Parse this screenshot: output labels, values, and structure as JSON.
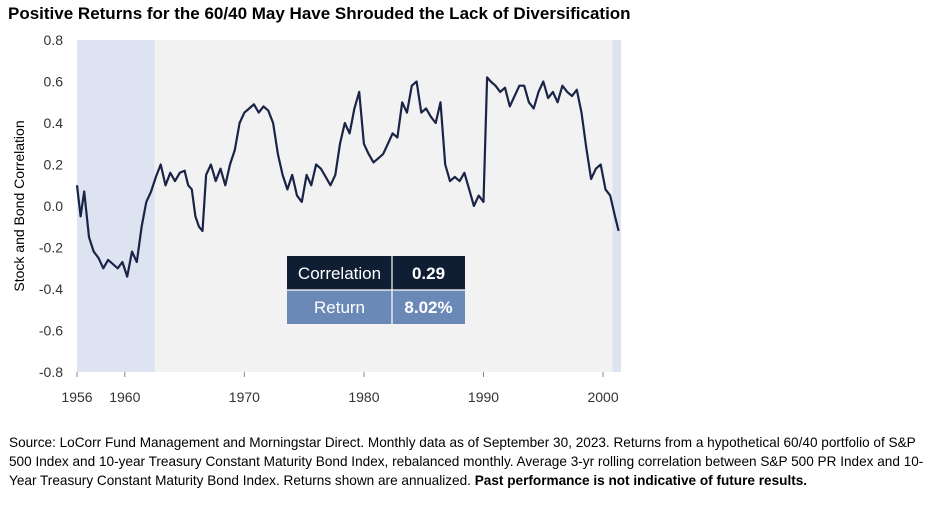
{
  "chart_data": {
    "type": "line",
    "title": "Positive Returns for the 60/40 May Have Shrouded the Lack of Diversification",
    "xlabel": "",
    "ylabel": "Stock and Bond Correlation",
    "xlim": [
      1956,
      2001.5
    ],
    "ylim": [
      -0.8,
      0.8
    ],
    "y_ticks": [
      "0.8",
      "0.6",
      "0.4",
      "0.2",
      "0.0",
      "-0.2",
      "-0.4",
      "-0.6",
      "-0.8"
    ],
    "y_tick_values": [
      0.8,
      0.6,
      0.4,
      0.2,
      0.0,
      -0.2,
      -0.4,
      -0.6,
      -0.8
    ],
    "x_ticks": [
      "1956",
      "1960",
      "1970",
      "1980",
      "1990",
      "2000"
    ],
    "x_tick_values": [
      1956,
      1960,
      1970,
      1980,
      1990,
      2000
    ],
    "shaded_periods": [
      [
        1956,
        1962.5
      ],
      [
        2000.8,
        2001.5
      ]
    ],
    "grid": false,
    "series": [
      {
        "color": "#1a2447",
        "x": [
          1956.0,
          1956.3,
          1956.6,
          1957.0,
          1957.4,
          1957.8,
          1958.2,
          1958.6,
          1959.0,
          1959.4,
          1959.8,
          1960.2,
          1960.6,
          1961.0,
          1961.4,
          1961.8,
          1962.2,
          1962.6,
          1963.0,
          1963.4,
          1963.8,
          1964.2,
          1964.6,
          1965.0,
          1965.3,
          1965.6,
          1965.9,
          1966.2,
          1966.5,
          1966.8,
          1967.2,
          1967.6,
          1968.0,
          1968.4,
          1968.8,
          1969.2,
          1969.6,
          1970.0,
          1970.4,
          1970.8,
          1971.2,
          1971.6,
          1972.0,
          1972.4,
          1972.8,
          1973.2,
          1973.6,
          1974.0,
          1974.4,
          1974.8,
          1975.2,
          1975.6,
          1976.0,
          1976.4,
          1976.8,
          1977.2,
          1977.6,
          1978.0,
          1978.4,
          1978.8,
          1979.2,
          1979.6,
          1980.0,
          1980.4,
          1980.8,
          1981.2,
          1981.6,
          1982.0,
          1982.4,
          1982.8,
          1983.2,
          1983.6,
          1984.0,
          1984.4,
          1984.8,
          1985.2,
          1985.6,
          1986.0,
          1986.4,
          1986.8,
          1987.2,
          1987.6,
          1988.0,
          1988.4,
          1988.8,
          1989.2,
          1989.6,
          1990.0,
          1990.3,
          1990.6,
          1991.0,
          1991.4,
          1991.8,
          1992.2,
          1992.6,
          1993.0,
          1993.4,
          1993.8,
          1994.2,
          1994.6,
          1995.0,
          1995.4,
          1995.8,
          1996.2,
          1996.6,
          1997.0,
          1997.4,
          1997.8,
          1998.2,
          1998.6,
          1999.0,
          1999.4,
          1999.8,
          2000.2,
          2000.6,
          2001.0,
          2001.3
        ],
        "values": [
          0.1,
          -0.05,
          0.07,
          -0.15,
          -0.22,
          -0.25,
          -0.3,
          -0.26,
          -0.28,
          -0.3,
          -0.27,
          -0.34,
          -0.22,
          -0.27,
          -0.1,
          0.02,
          0.07,
          0.14,
          0.2,
          0.1,
          0.16,
          0.12,
          0.16,
          0.17,
          0.1,
          0.08,
          -0.05,
          -0.1,
          -0.12,
          0.15,
          0.2,
          0.12,
          0.18,
          0.1,
          0.2,
          0.27,
          0.4,
          0.45,
          0.47,
          0.49,
          0.45,
          0.48,
          0.46,
          0.4,
          0.25,
          0.15,
          0.08,
          0.15,
          0.05,
          0.02,
          0.15,
          0.1,
          0.2,
          0.18,
          0.14,
          0.1,
          0.15,
          0.3,
          0.4,
          0.35,
          0.47,
          0.55,
          0.3,
          0.25,
          0.21,
          0.23,
          0.25,
          0.3,
          0.35,
          0.33,
          0.5,
          0.45,
          0.58,
          0.6,
          0.45,
          0.47,
          0.43,
          0.4,
          0.5,
          0.2,
          0.12,
          0.14,
          0.12,
          0.16,
          0.08,
          0.0,
          0.05,
          0.02,
          0.62,
          0.6,
          0.58,
          0.55,
          0.57,
          0.48,
          0.53,
          0.58,
          0.58,
          0.5,
          0.47,
          0.55,
          0.6,
          0.52,
          0.55,
          0.5,
          0.58,
          0.55,
          0.53,
          0.56,
          0.45,
          0.28,
          0.13,
          0.18,
          0.2,
          0.08,
          0.05,
          -0.05,
          -0.12
        ]
      }
    ],
    "table": {
      "rows": [
        {
          "label": "Correlation",
          "value": "0.29"
        },
        {
          "label": "Return",
          "value": "8.02%"
        }
      ]
    }
  },
  "source_text": "Source: LoCorr Fund Management and Morningstar Direct. Monthly data as of September 30, 2023. Returns from a hypothetical 60/40 portfolio of S&P 500 Index and 10-year Treasury Constant Maturity Bond Index, rebalanced monthly. Average 3-yr rolling correlation between S&P 500 PR Index and 10-Year Treasury Constant Maturity Bond Index. Returns shown are annualized. ",
  "source_bold": "Past performance is not indicative of future results.",
  "colors": {
    "plot_bg": "#f2f2f2",
    "shade": "#dde3f0",
    "line": "#1a2447",
    "table_dark": "#0f1e33",
    "table_blue": "#6a89b7"
  }
}
